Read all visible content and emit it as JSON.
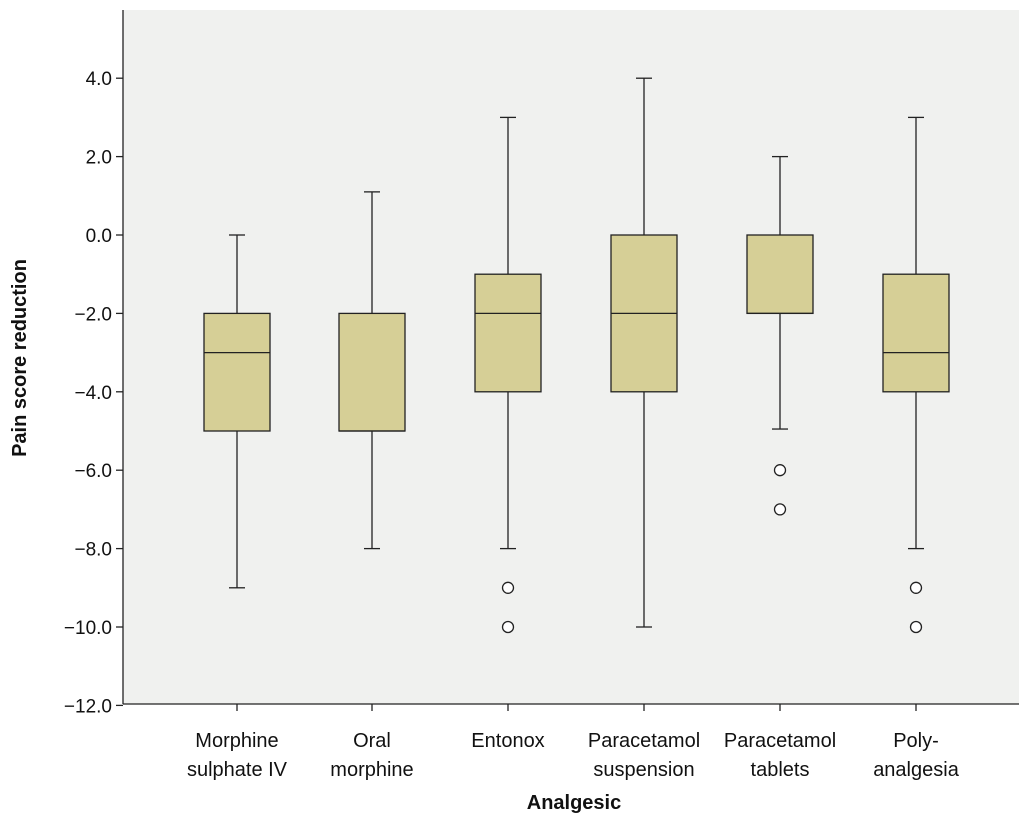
{
  "chart_data": {
    "type": "boxplot",
    "title": "",
    "xlabel": "Analgesic",
    "ylabel": "Pain score reduction",
    "ylim": [
      -12,
      5.8
    ],
    "yticks": [
      4,
      2,
      0,
      -2,
      -4,
      -6,
      -8,
      -10,
      -12
    ],
    "ytick_labels": [
      "4.0",
      "2.0",
      "0.0",
      "−2.0",
      "−4.0",
      "−6.0",
      "−8.0",
      "−10.0",
      "−12.0"
    ],
    "grid": false,
    "box_color": "#d6cf96",
    "background_color": "#f0f1ef",
    "categories": [
      {
        "label": [
          "Morphine",
          "sulphate IV"
        ],
        "whisker_low": -9,
        "q1": -5,
        "median": -3,
        "q3": -2,
        "whisker_high": 0,
        "outliers": []
      },
      {
        "label": [
          "Oral",
          "morphine"
        ],
        "whisker_low": -8,
        "q1": -5,
        "median": -5,
        "q3": -2,
        "whisker_high": 1.1,
        "outliers": []
      },
      {
        "label": [
          "Entonox"
        ],
        "whisker_low": -8,
        "q1": -4,
        "median": -2,
        "q3": -1,
        "whisker_high": 3,
        "outliers": [
          -9,
          -10
        ]
      },
      {
        "label": [
          "Paracetamol",
          "suspension"
        ],
        "whisker_low": -10,
        "q1": -4,
        "median": -2,
        "q3": 0,
        "whisker_high": 4,
        "outliers": []
      },
      {
        "label": [
          "Paracetamol",
          "tablets"
        ],
        "whisker_low": -4.95,
        "q1": -2,
        "median": -2,
        "q3": 0,
        "whisker_high": 2,
        "outliers": [
          -6,
          -7
        ]
      },
      {
        "label": [
          "Poly-",
          "analgesia"
        ],
        "whisker_low": -8,
        "q1": -4,
        "median": -3,
        "q3": -1,
        "whisker_high": 3,
        "outliers": [
          -9,
          -10
        ]
      }
    ]
  }
}
